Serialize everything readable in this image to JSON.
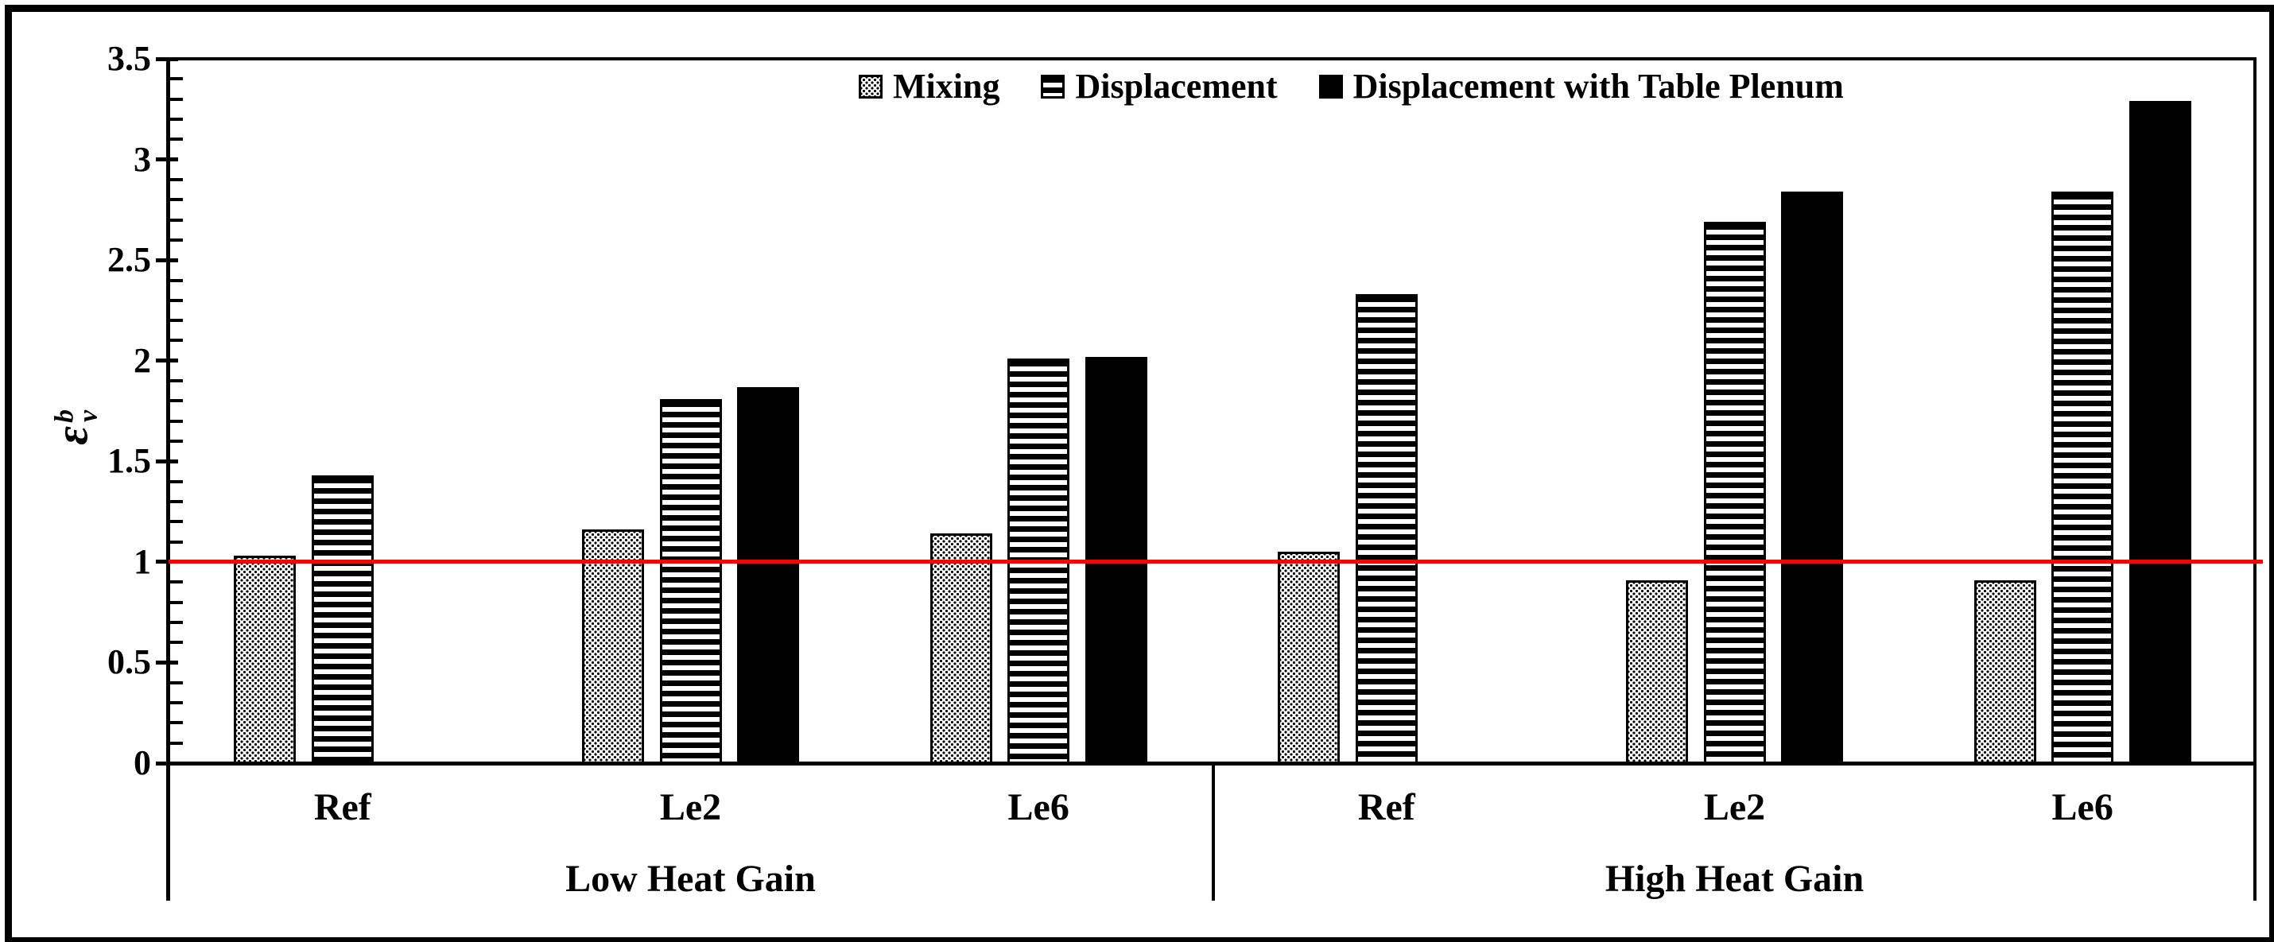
{
  "figure": {
    "background": "#ffffff",
    "border_color": "#000000",
    "axis_color": "#000000"
  },
  "legend": {
    "items": [
      {
        "label": "Mixing",
        "pattern": "dots"
      },
      {
        "label": "Displacement",
        "pattern": "hstripes"
      },
      {
        "label": "Displacement with Table Plenum",
        "pattern": "solid"
      }
    ]
  },
  "y_axis": {
    "symbol": "ε",
    "superscript": "b",
    "subscript": "v",
    "min": 0,
    "max": 3.5,
    "major_step": 0.5,
    "minor_step": 0.1,
    "tick_values": [
      3.5,
      3,
      2.5,
      2,
      1.5,
      1,
      0.5,
      0
    ],
    "tick_labels": [
      "3.5",
      "3",
      "2.5",
      "2",
      "1.5",
      "1",
      "0.5",
      "0"
    ]
  },
  "x_axis": {
    "groups": [
      {
        "label": "Low Heat Gain",
        "categories": [
          "Ref",
          "Le2",
          "Le6"
        ]
      },
      {
        "label": "High Heat Gain",
        "categories": [
          "Ref",
          "Le2",
          "Le6"
        ]
      }
    ]
  },
  "reference_line": {
    "value": 1.0,
    "color": "#FF0000"
  },
  "chart_data": {
    "type": "bar",
    "title": "",
    "ylabel": "ε_v^b",
    "xlabel": "",
    "ylim": [
      0,
      3.5
    ],
    "grid": false,
    "legend_position": "top-center-inside",
    "categories": [
      "Ref (Low Heat Gain)",
      "Le2 (Low Heat Gain)",
      "Le6 (Low Heat Gain)",
      "Ref (High Heat Gain)",
      "Le2 (High Heat Gain)",
      "Le6 (High Heat Gain)"
    ],
    "series": [
      {
        "name": "Mixing",
        "pattern": "dots",
        "values": [
          1.03,
          1.16,
          1.14,
          1.05,
          0.91,
          0.91
        ]
      },
      {
        "name": "Displacement",
        "pattern": "hstripes",
        "values": [
          1.43,
          1.81,
          2.01,
          2.33,
          2.69,
          2.84
        ]
      },
      {
        "name": "Displacement with Table Plenum",
        "pattern": "solid",
        "values": [
          null,
          1.87,
          2.02,
          null,
          2.84,
          3.29
        ]
      }
    ],
    "reference_line_value": 1.0
  }
}
